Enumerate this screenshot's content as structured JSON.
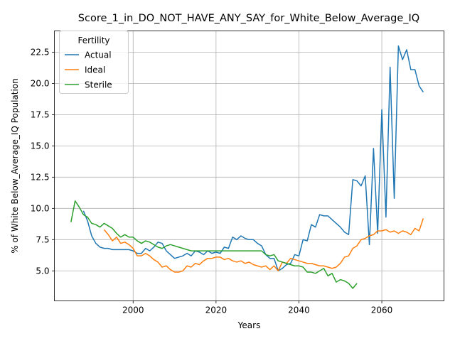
{
  "chart_data": {
    "type": "line",
    "title": "Score_1_in_DO_NOT_HAVE_ANY_SAY_for_White_Below_Average_IQ",
    "xlabel": "Years",
    "ylabel": "% of White Below_Average_IQ Population",
    "xlim": [
      1981,
      2075
    ],
    "ylim": [
      2.6,
      24.2
    ],
    "xticks": [
      2000,
      2020,
      2040,
      2060
    ],
    "yticks": [
      5.0,
      7.5,
      10.0,
      12.5,
      15.0,
      17.5,
      20.0,
      22.5
    ],
    "ytick_labels": [
      "5.0",
      "7.5",
      "10.0",
      "12.5",
      "15.0",
      "17.5",
      "20.0",
      "22.5"
    ],
    "grid": true,
    "legend": {
      "title": "Fertility",
      "placement": "top-left"
    },
    "series": [
      {
        "name": "Actual",
        "color": "#1f77b4",
        "x": [
          1988,
          1989,
          1990,
          1991,
          1992,
          1993,
          1994,
          1995,
          1996,
          1997,
          1998,
          1999,
          2000,
          2001,
          2002,
          2003,
          2004,
          2005,
          2006,
          2007,
          2008,
          2009,
          2010,
          2011,
          2012,
          2013,
          2014,
          2015,
          2016,
          2017,
          2018,
          2019,
          2020,
          2021,
          2022,
          2023,
          2024,
          2025,
          2026,
          2027,
          2028,
          2029,
          2030,
          2031,
          2032,
          2033,
          2034,
          2035,
          2036,
          2037,
          2038,
          2039,
          2040,
          2041,
          2042,
          2043,
          2044,
          2045,
          2046,
          2047,
          2048,
          2049,
          2050,
          2051,
          2052,
          2053,
          2054,
          2055,
          2056,
          2057,
          2058,
          2059,
          2060,
          2061,
          2062,
          2063,
          2064,
          2065,
          2066,
          2067,
          2068,
          2069,
          2070
        ],
        "y": [
          9.8,
          9.0,
          7.8,
          7.2,
          6.9,
          6.8,
          6.8,
          6.7,
          6.7,
          6.7,
          6.7,
          6.7,
          6.6,
          6.4,
          6.4,
          6.8,
          6.6,
          6.9,
          7.3,
          7.2,
          6.6,
          6.3,
          6.0,
          6.1,
          6.2,
          6.4,
          6.2,
          6.6,
          6.5,
          6.3,
          6.6,
          6.4,
          6.5,
          6.4,
          6.9,
          6.8,
          7.7,
          7.5,
          7.8,
          7.6,
          7.5,
          7.5,
          7.2,
          7.0,
          6.3,
          6.0,
          6.0,
          5.0,
          5.2,
          5.5,
          5.6,
          6.3,
          6.2,
          7.5,
          7.4,
          8.7,
          8.5,
          9.5,
          9.4,
          9.4,
          9.1,
          8.8,
          8.5,
          8.1,
          7.9,
          12.3,
          12.2,
          11.8,
          12.6,
          7.1,
          14.8,
          8.0,
          17.9,
          9.3,
          21.3,
          10.8,
          23.0,
          21.9,
          22.7,
          21.1,
          21.1,
          19.8,
          19.3
        ]
      },
      {
        "name": "Ideal",
        "color": "#ff7f0e",
        "x": [
          1993,
          1994,
          1995,
          1996,
          1997,
          1998,
          1999,
          2000,
          2001,
          2002,
          2003,
          2004,
          2005,
          2006,
          2007,
          2008,
          2009,
          2010,
          2011,
          2012,
          2013,
          2014,
          2015,
          2016,
          2017,
          2018,
          2019,
          2020,
          2021,
          2022,
          2023,
          2024,
          2025,
          2026,
          2027,
          2028,
          2029,
          2030,
          2031,
          2032,
          2033,
          2034,
          2035,
          2036,
          2037,
          2038,
          2039,
          2040,
          2041,
          2042,
          2043,
          2044,
          2045,
          2046,
          2047,
          2048,
          2049,
          2050,
          2051,
          2052,
          2053,
          2054,
          2055,
          2056,
          2057,
          2058,
          2059,
          2060,
          2061,
          2062,
          2063,
          2064,
          2065,
          2066,
          2067,
          2068,
          2069,
          2070
        ],
        "y": [
          8.3,
          7.9,
          7.4,
          7.7,
          7.2,
          7.3,
          7.1,
          6.8,
          6.2,
          6.2,
          6.4,
          6.2,
          5.9,
          5.7,
          5.3,
          5.4,
          5.1,
          4.9,
          4.9,
          5.0,
          5.4,
          5.3,
          5.6,
          5.5,
          5.8,
          6.0,
          6.0,
          6.1,
          6.1,
          5.9,
          6.0,
          5.8,
          5.7,
          5.8,
          5.6,
          5.7,
          5.5,
          5.4,
          5.3,
          5.4,
          5.1,
          5.4,
          5.0,
          5.7,
          5.6,
          6.0,
          5.9,
          5.8,
          5.7,
          5.6,
          5.6,
          5.5,
          5.4,
          5.4,
          5.3,
          5.2,
          5.3,
          5.6,
          6.1,
          6.2,
          6.8,
          7.0,
          7.5,
          7.6,
          7.8,
          7.9,
          8.2,
          8.2,
          8.3,
          8.1,
          8.2,
          8.0,
          8.2,
          8.1,
          7.9,
          8.4,
          8.2,
          9.2
        ]
      },
      {
        "name": "Sterile",
        "color": "#2ca02c",
        "x": [
          1985,
          1986,
          1987,
          1988,
          1989,
          1990,
          1991,
          1992,
          1993,
          1994,
          1995,
          1996,
          1997,
          1998,
          1999,
          2000,
          2001,
          2002,
          2003,
          2004,
          2005,
          2006,
          2007,
          2008,
          2009,
          2010,
          2011,
          2012,
          2013,
          2014,
          2015,
          2016,
          2017,
          2018,
          2019,
          2020,
          2021,
          2022,
          2023,
          2024,
          2025,
          2026,
          2027,
          2028,
          2029,
          2030,
          2031,
          2032,
          2033,
          2034,
          2035,
          2036,
          2037,
          2038,
          2039,
          2040,
          2041,
          2042,
          2043,
          2044,
          2045,
          2046,
          2047,
          2048,
          2049,
          2050,
          2051,
          2052,
          2053,
          2054
        ],
        "y": [
          8.9,
          10.6,
          10.1,
          9.5,
          9.3,
          8.8,
          8.7,
          8.5,
          8.8,
          8.6,
          8.4,
          8.0,
          7.7,
          7.9,
          7.7,
          7.7,
          7.4,
          7.2,
          7.4,
          7.3,
          7.1,
          6.9,
          6.8,
          7.0,
          7.1,
          7.0,
          6.9,
          6.8,
          6.7,
          6.6,
          6.6,
          6.6,
          6.6,
          6.6,
          6.6,
          6.6,
          6.6,
          6.6,
          6.6,
          6.6,
          6.6,
          6.6,
          6.6,
          6.6,
          6.6,
          6.6,
          6.6,
          6.3,
          6.2,
          6.3,
          5.8,
          5.7,
          5.6,
          5.5,
          5.4,
          5.4,
          5.3,
          4.9,
          4.9,
          4.8,
          5.0,
          5.2,
          4.6,
          4.8,
          4.1,
          4.3,
          4.2,
          4.0,
          3.6,
          4.0
        ]
      }
    ]
  }
}
